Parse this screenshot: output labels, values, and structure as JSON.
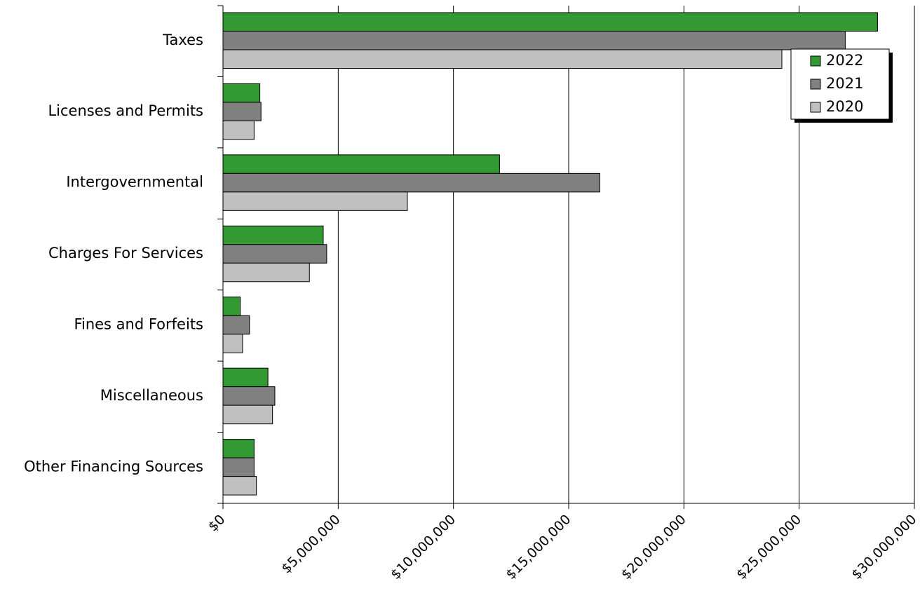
{
  "chart_data": {
    "type": "bar",
    "orientation": "horizontal",
    "title": "",
    "xlabel": "",
    "ylabel": "",
    "categories": [
      "Taxes",
      "Licenses and Permits",
      "Intergovernmental",
      "Charges For Services",
      "Fines and Forfeits",
      "Miscellaneous",
      "Other Financing Sources"
    ],
    "series": [
      {
        "name": "2022",
        "color": "#339933",
        "values": [
          28400000,
          1600000,
          12000000,
          4350000,
          750000,
          1950000,
          1350000
        ]
      },
      {
        "name": "2021",
        "color": "#808080",
        "values": [
          27000000,
          1650000,
          16350000,
          4500000,
          1150000,
          2250000,
          1350000
        ]
      },
      {
        "name": "2020",
        "color": "#c0c0c0",
        "values": [
          24250000,
          1350000,
          8000000,
          3750000,
          850000,
          2150000,
          1450000
        ]
      }
    ],
    "xlim": [
      0,
      30000000
    ],
    "x_ticks": [
      0,
      5000000,
      10000000,
      15000000,
      20000000,
      25000000,
      30000000
    ],
    "x_tick_labels": [
      "$0",
      "$5,000,000",
      "$10,000,000",
      "$15,000,000",
      "$20,000,000",
      "$25,000,000",
      "$30,000,000"
    ],
    "grid": true,
    "legend_position": "top-right"
  }
}
